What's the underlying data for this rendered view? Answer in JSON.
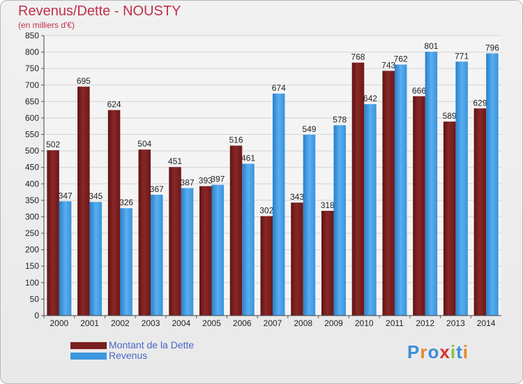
{
  "header": {
    "title": "Revenus/Dette - NOUSTY",
    "subtitle": "(en milliers d'€)"
  },
  "legend": {
    "items": [
      {
        "label": "Montant de la Dette",
        "color": "#7a1f1f"
      },
      {
        "label": "Revenus",
        "color": "#3d97de"
      }
    ]
  },
  "logo": {
    "letters": [
      "P",
      "r",
      "o",
      "x",
      "i",
      "t",
      "i"
    ],
    "colors": [
      "#3a8fd8",
      "#e8862a",
      "#3a8fd8",
      "#d8322d",
      "#8cbf3f",
      "#3a8fd8",
      "#e8862a"
    ]
  },
  "chart_data": {
    "type": "bar",
    "categories": [
      "2000",
      "2001",
      "2002",
      "2003",
      "2004",
      "2005",
      "2006",
      "2007",
      "2008",
      "2009",
      "2010",
      "2011",
      "2012",
      "2013",
      "2014"
    ],
    "series": [
      {
        "name": "Montant de la Dette",
        "color": "#7a1f1f",
        "values": [
          502,
          695,
          624,
          504,
          451,
          393,
          516,
          302,
          343,
          318,
          768,
          743,
          666,
          589,
          629
        ]
      },
      {
        "name": "Revenus",
        "color": "#3d97de",
        "values": [
          347,
          345,
          326,
          367,
          387,
          397,
          461,
          674,
          549,
          578,
          642,
          762,
          801,
          771,
          796
        ]
      }
    ],
    "ylim": [
      0,
      850
    ],
    "ytick_step": 50,
    "grid": true
  }
}
